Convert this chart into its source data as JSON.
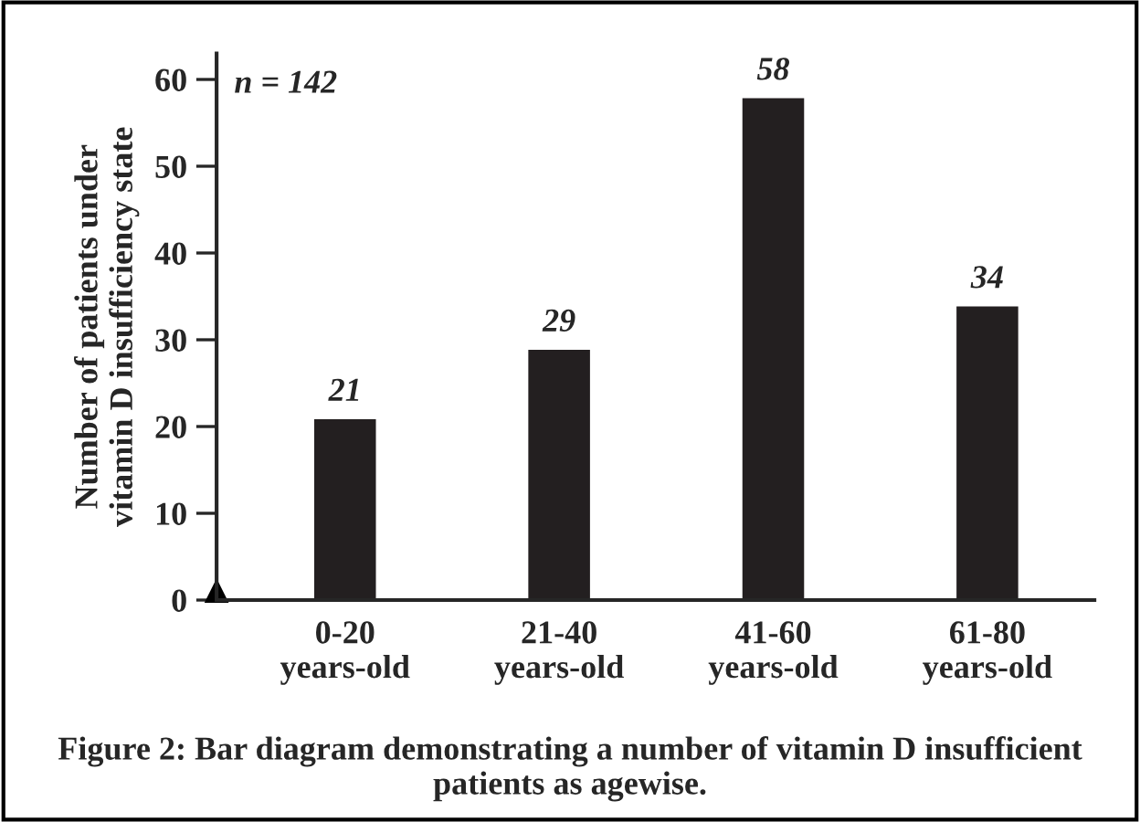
{
  "chart_data": {
    "type": "bar",
    "categories": [
      "0-20\nyears-old",
      "21-40\nyears-old",
      "41-60\nyears-old",
      "61-80\nyears-old"
    ],
    "values": [
      21,
      29,
      58,
      34
    ],
    "color": "#231f20",
    "ylabel": "Number of patients under\nvitamin D insufficiency state",
    "ylim": [
      0,
      63
    ],
    "yticks": [
      0,
      10,
      20,
      30,
      40,
      50,
      60
    ],
    "data_labels": true,
    "grid": false,
    "legend": false,
    "annotations": [
      "n = 142",
      "Figure 2: Bar diagram demonstrating a number of vitamin D insufficient patients as agewise."
    ]
  }
}
